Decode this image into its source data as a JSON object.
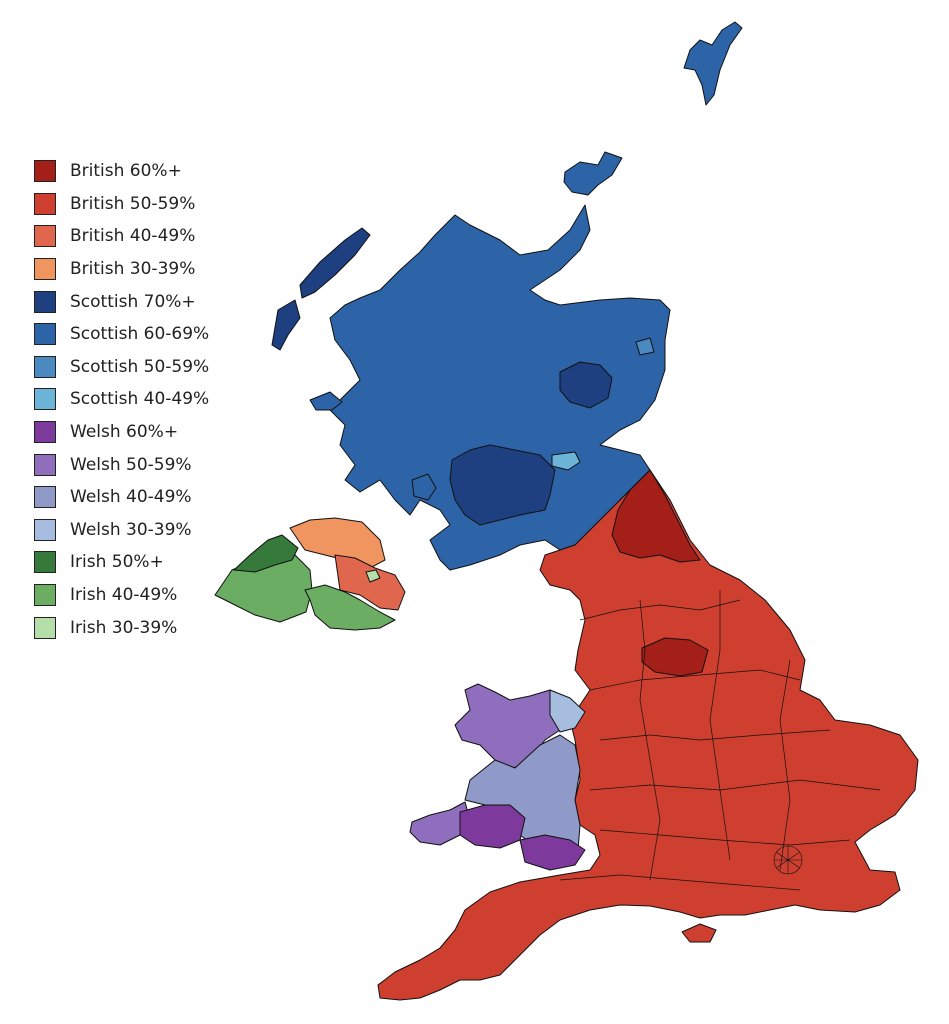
{
  "legend": {
    "items": [
      {
        "label": "British 60%+",
        "color": "#a31f18"
      },
      {
        "label": "British 50-59%",
        "color": "#cf3f2f"
      },
      {
        "label": "British 40-49%",
        "color": "#e0674e"
      },
      {
        "label": "British 30-39%",
        "color": "#f0955f"
      },
      {
        "label": "Scottish 70%+",
        "color": "#1e3f80"
      },
      {
        "label": "Scottish 60-69%",
        "color": "#2d64a8"
      },
      {
        "label": "Scottish 50-59%",
        "color": "#4a8ac0"
      },
      {
        "label": "Scottish 40-49%",
        "color": "#6cb4d8"
      },
      {
        "label": "Welsh 60%+",
        "color": "#7d3a9c"
      },
      {
        "label": "Welsh 50-59%",
        "color": "#8f6fbd"
      },
      {
        "label": "Welsh 40-49%",
        "color": "#8f9ac8"
      },
      {
        "label": "Welsh 30-39%",
        "color": "#a7bde0"
      },
      {
        "label": "Irish 50%+",
        "color": "#367a3b"
      },
      {
        "label": "Irish 40-49%",
        "color": "#6bad62"
      },
      {
        "label": "Irish 30-39%",
        "color": "#b4deaa"
      }
    ]
  },
  "map": {
    "regions": [
      {
        "id": "scotland-main",
        "category": 5
      },
      {
        "id": "scotland-central-belt",
        "category": 4
      },
      {
        "id": "scotland-aberdeenshire",
        "category": 4
      },
      {
        "id": "scotland-west-isles",
        "category": 4
      },
      {
        "id": "scotland-edinburgh",
        "category": 7
      },
      {
        "id": "scotland-aberdeen",
        "category": 6
      },
      {
        "id": "shetland",
        "category": 5
      },
      {
        "id": "orkney",
        "category": 5
      },
      {
        "id": "england",
        "category": 1
      },
      {
        "id": "northumberland",
        "category": 0
      },
      {
        "id": "north-yorkshire-moors",
        "category": 0
      },
      {
        "id": "isle-of-wight",
        "category": 1
      },
      {
        "id": "wales-north",
        "category": 9
      },
      {
        "id": "wales-mid",
        "category": 10
      },
      {
        "id": "wales-north-east",
        "category": 11
      },
      {
        "id": "wales-south-west",
        "category": 9
      },
      {
        "id": "wales-carmarthen",
        "category": 8
      },
      {
        "id": "wales-valleys",
        "category": 8
      },
      {
        "id": "ni-west",
        "category": 13
      },
      {
        "id": "ni-north-west",
        "category": 12
      },
      {
        "id": "ni-north-east",
        "category": 3
      },
      {
        "id": "ni-east",
        "category": 2
      },
      {
        "id": "ni-south",
        "category": 13
      },
      {
        "id": "ni-belfast",
        "category": 14
      }
    ]
  }
}
